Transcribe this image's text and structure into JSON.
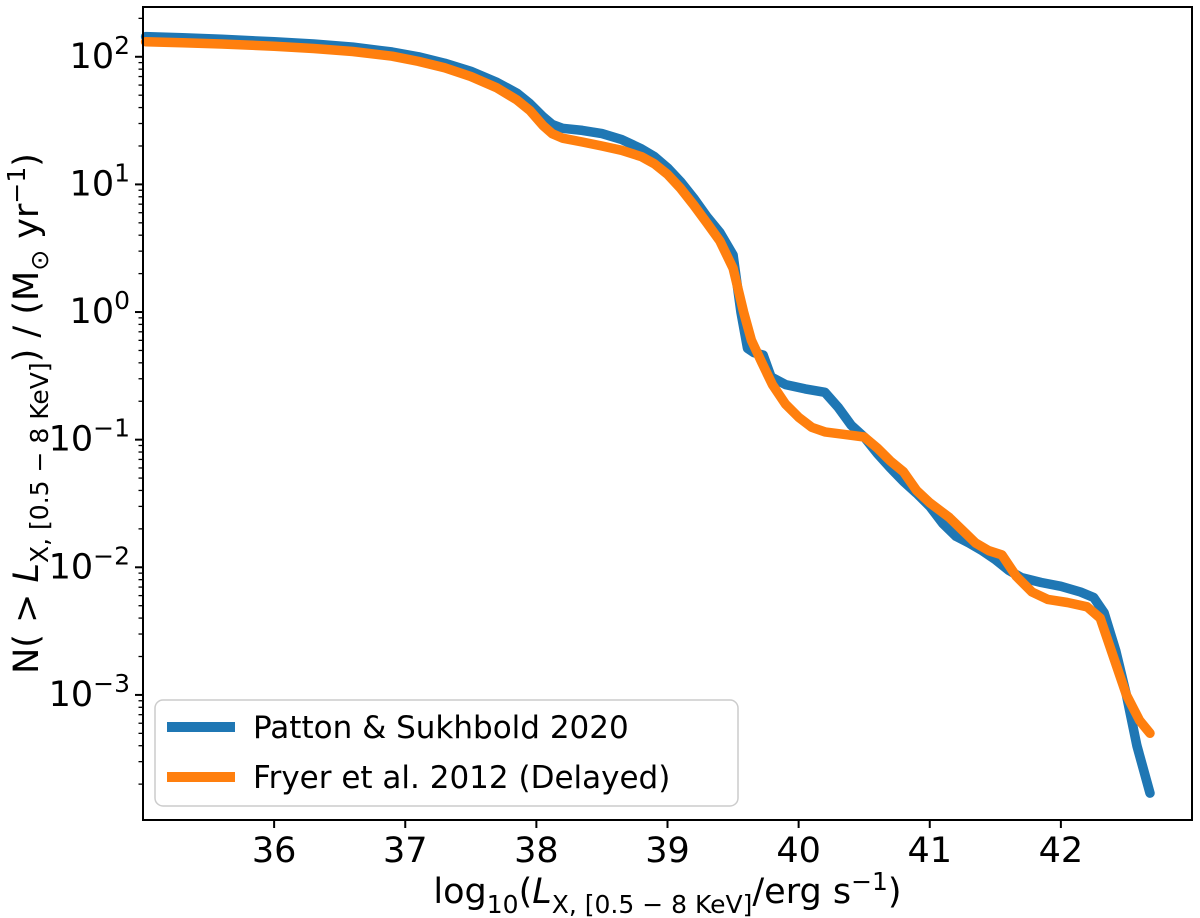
{
  "chart_data": {
    "type": "line",
    "title": "",
    "xlabel": "log₁₀(L_X, [0.5 − 8 KeV]/erg s⁻¹)",
    "ylabel": "N( > L_X, [0.5 − 8 KeV]) / (M⊙ yr⁻¹)",
    "xlabel_parts": [
      {
        "t": "log",
        "k": "n"
      },
      {
        "t": "10",
        "k": "sub"
      },
      {
        "t": "(",
        "k": "n"
      },
      {
        "t": "L",
        "k": "i"
      },
      {
        "t": "X, [0.5 − 8 KeV]",
        "k": "sub"
      },
      {
        "t": "/erg s",
        "k": "n"
      },
      {
        "t": "−1",
        "k": "sup"
      },
      {
        "t": ")",
        "k": "n"
      }
    ],
    "ylabel_parts": [
      {
        "t": "N( > ",
        "k": "n"
      },
      {
        "t": "L",
        "k": "i"
      },
      {
        "t": "X, [0.5 − 8 KeV]",
        "k": "sub"
      },
      {
        "t": ") / (M",
        "k": "n"
      },
      {
        "t": "⊙",
        "k": "sub"
      },
      {
        "t": " yr",
        "k": "n"
      },
      {
        "t": "−1",
        "k": "sup"
      },
      {
        "t": ")",
        "k": "n"
      }
    ],
    "xlim": [
      35.0,
      43.0
    ],
    "ylim_log": [
      -3.98,
      2.39
    ],
    "x_ticks": [
      36,
      37,
      38,
      39,
      40,
      41,
      42
    ],
    "y_tick_exponents": [
      2,
      1,
      0,
      -1,
      -2,
      -3
    ],
    "grid": false,
    "axis_color": "#000000",
    "background": "#ffffff",
    "legend": {
      "position": "lower left",
      "border_color": "#cccccc",
      "entries": [
        {
          "label": "Patton & Sukhbold 2020"
        },
        {
          "label": "Fryer et al. 2012 (Delayed)"
        }
      ]
    },
    "series": [
      {
        "name": "Patton & Sukhbold 2020",
        "color": "#1f77b4",
        "points": [
          [
            35.02,
            144
          ],
          [
            35.3,
            141
          ],
          [
            35.6,
            137
          ],
          [
            36.0,
            131
          ],
          [
            36.3,
            126
          ],
          [
            36.6,
            119
          ],
          [
            36.9,
            109
          ],
          [
            37.1,
            100
          ],
          [
            37.3,
            89
          ],
          [
            37.5,
            77
          ],
          [
            37.7,
            63
          ],
          [
            37.85,
            52
          ],
          [
            37.95,
            43
          ],
          [
            38.05,
            34
          ],
          [
            38.12,
            29.5
          ],
          [
            38.2,
            27.5
          ],
          [
            38.35,
            26.5
          ],
          [
            38.5,
            25
          ],
          [
            38.65,
            22.5
          ],
          [
            38.8,
            19
          ],
          [
            38.9,
            16.5
          ],
          [
            39.0,
            13.5
          ],
          [
            39.1,
            10.5
          ],
          [
            39.2,
            7.8
          ],
          [
            39.3,
            5.6
          ],
          [
            39.4,
            4.2
          ],
          [
            39.5,
            2.8
          ],
          [
            39.56,
            1.0
          ],
          [
            39.61,
            0.52
          ],
          [
            39.66,
            0.48
          ],
          [
            39.73,
            0.46
          ],
          [
            39.79,
            0.31
          ],
          [
            39.9,
            0.27
          ],
          [
            40.05,
            0.25
          ],
          [
            40.2,
            0.235
          ],
          [
            40.3,
            0.18
          ],
          [
            40.4,
            0.13
          ],
          [
            40.5,
            0.105
          ],
          [
            40.6,
            0.078
          ],
          [
            40.7,
            0.06
          ],
          [
            40.8,
            0.047
          ],
          [
            40.9,
            0.038
          ],
          [
            41.0,
            0.03
          ],
          [
            41.1,
            0.022
          ],
          [
            41.2,
            0.0175
          ],
          [
            41.3,
            0.0155
          ],
          [
            41.4,
            0.0135
          ],
          [
            41.5,
            0.0115
          ],
          [
            41.6,
            0.0095
          ],
          [
            41.7,
            0.0083
          ],
          [
            41.85,
            0.0076
          ],
          [
            42.0,
            0.0071
          ],
          [
            42.15,
            0.0064
          ],
          [
            42.25,
            0.0058
          ],
          [
            42.33,
            0.0044
          ],
          [
            42.42,
            0.0022
          ],
          [
            42.5,
            0.001
          ],
          [
            42.58,
            0.0004
          ],
          [
            42.68,
            0.00017
          ]
        ]
      },
      {
        "name": "Fryer et al. 2012 (Delayed)",
        "color": "#ff7f0e",
        "points": [
          [
            35.02,
            131
          ],
          [
            35.3,
            129
          ],
          [
            35.6,
            126
          ],
          [
            36.0,
            121
          ],
          [
            36.3,
            116
          ],
          [
            36.6,
            110
          ],
          [
            36.9,
            101
          ],
          [
            37.1,
            92
          ],
          [
            37.3,
            82
          ],
          [
            37.5,
            70
          ],
          [
            37.7,
            57
          ],
          [
            37.85,
            46
          ],
          [
            37.95,
            38
          ],
          [
            38.05,
            29
          ],
          [
            38.12,
            25
          ],
          [
            38.2,
            23
          ],
          [
            38.35,
            21.5
          ],
          [
            38.5,
            20
          ],
          [
            38.65,
            18.5
          ],
          [
            38.8,
            16.5
          ],
          [
            38.9,
            14.5
          ],
          [
            39.0,
            12
          ],
          [
            39.1,
            9.3
          ],
          [
            39.2,
            6.9
          ],
          [
            39.3,
            5.0
          ],
          [
            39.4,
            3.6
          ],
          [
            39.5,
            2.2
          ],
          [
            39.58,
            1.0
          ],
          [
            39.64,
            0.6
          ],
          [
            39.72,
            0.4
          ],
          [
            39.8,
            0.27
          ],
          [
            39.9,
            0.19
          ],
          [
            40.0,
            0.15
          ],
          [
            40.1,
            0.125
          ],
          [
            40.2,
            0.115
          ],
          [
            40.35,
            0.11
          ],
          [
            40.5,
            0.105
          ],
          [
            40.6,
            0.086
          ],
          [
            40.7,
            0.068
          ],
          [
            40.8,
            0.056
          ],
          [
            40.9,
            0.04
          ],
          [
            41.0,
            0.032
          ],
          [
            41.15,
            0.0245
          ],
          [
            41.25,
            0.0195
          ],
          [
            41.35,
            0.0155
          ],
          [
            41.45,
            0.0135
          ],
          [
            41.55,
            0.0125
          ],
          [
            41.66,
            0.0085
          ],
          [
            41.78,
            0.0064
          ],
          [
            41.9,
            0.0056
          ],
          [
            42.05,
            0.0053
          ],
          [
            42.2,
            0.0049
          ],
          [
            42.3,
            0.004
          ],
          [
            42.4,
            0.002
          ],
          [
            42.5,
            0.001
          ],
          [
            42.6,
            0.00063
          ],
          [
            42.68,
            0.0005
          ]
        ]
      }
    ]
  }
}
